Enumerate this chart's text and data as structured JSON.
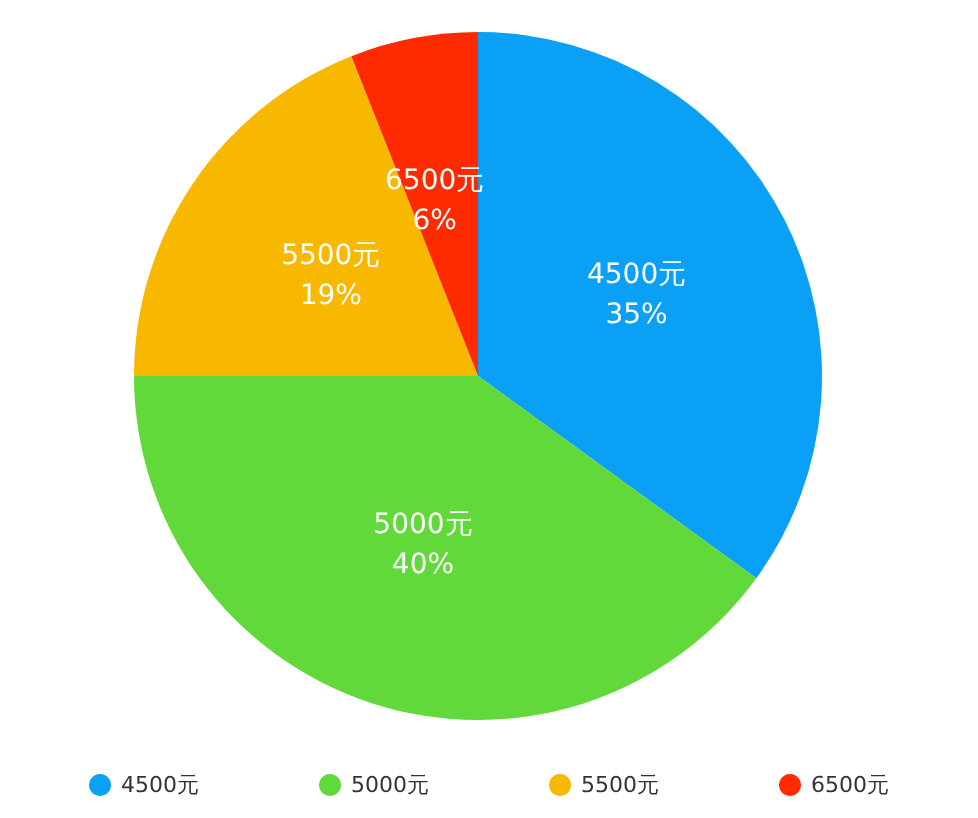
{
  "chart_data": {
    "type": "pie",
    "categories": [
      "4500元",
      "5000元",
      "5500元",
      "6500元"
    ],
    "values": [
      35,
      40,
      19,
      6
    ],
    "colors": [
      "#0aa0f6",
      "#62d93a",
      "#f8b800",
      "#ff2a00"
    ],
    "value_labels": [
      "35%",
      "40%",
      "19%",
      "6%"
    ],
    "legend": "bottom"
  }
}
